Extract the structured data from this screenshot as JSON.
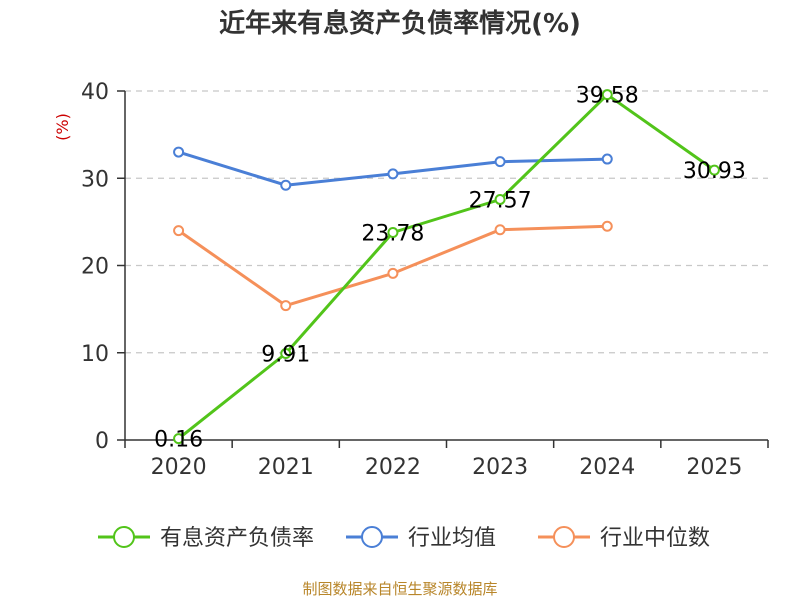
{
  "chart_data": {
    "type": "line",
    "title": "近年来有息资产负债率情况(%)",
    "ylabel": "(%)",
    "xlabel": "",
    "categories": [
      "2020",
      "2021",
      "2022",
      "2023",
      "2024",
      "2025"
    ],
    "y_ticks": [
      "0",
      "10",
      "20",
      "30",
      "40"
    ],
    "ylim": [
      0,
      40
    ],
    "grid": true,
    "legend_position": "bottom",
    "series": [
      {
        "name": "有息资产负债率",
        "color": "#52c41a",
        "values": [
          0.16,
          9.91,
          23.78,
          27.57,
          39.58,
          30.93
        ],
        "labels": [
          "0.16",
          "9.91",
          "23.78",
          "27.57",
          "39.58",
          "30.93"
        ]
      },
      {
        "name": "行业均值",
        "color": "#4a7fd6",
        "values": [
          33.0,
          29.2,
          30.5,
          31.9,
          32.2,
          null
        ]
      },
      {
        "name": "行业中位数",
        "color": "#f5905a",
        "values": [
          24.0,
          15.4,
          19.1,
          24.1,
          24.5,
          null
        ]
      }
    ]
  },
  "source": "制图数据来自恒生聚源数据库"
}
